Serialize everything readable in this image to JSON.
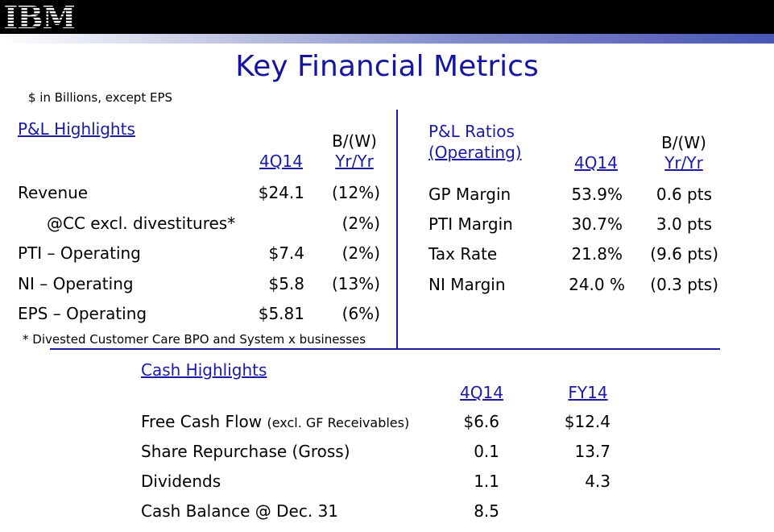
{
  "header": {
    "logo_text": "IBM"
  },
  "title": "Key Financial Metrics",
  "units_note": "$ in Billions, except EPS",
  "pl_highlights": {
    "heading": "P&L Highlights",
    "col1_header": "4Q14",
    "col2_header_line1": "B/(W)",
    "col2_header_line2": "Yr/Yr",
    "rows": [
      {
        "label": "Revenue",
        "value": "$24.1",
        "change": "(12%)"
      },
      {
        "label": "@CC excl. divestitures*",
        "value": "",
        "change": "(2%)"
      },
      {
        "label": "PTI – Operating",
        "value": "$7.4",
        "change": "(2%)"
      },
      {
        "label": "NI – Operating",
        "value": "$5.8",
        "change": "(13%)"
      },
      {
        "label": "EPS – Operating",
        "value": "$5.81",
        "change": "(6%)"
      }
    ],
    "footnote": "* Divested Customer Care BPO and System x businesses"
  },
  "pl_ratios": {
    "heading_line1": "P&L Ratios",
    "heading_line2": "(Operating)",
    "col1_header": "4Q14",
    "col2_header_line1": "B/(W)",
    "col2_header_line2": "Yr/Yr",
    "rows": [
      {
        "label": "GP Margin",
        "value": "53.9%",
        "change": "0.6 pts"
      },
      {
        "label": "PTI Margin",
        "value": "30.7%",
        "change": "3.0 pts"
      },
      {
        "label": "Tax Rate",
        "value": "21.8%",
        "change": "(9.6 pts)"
      },
      {
        "label": "NI Margin",
        "value": "24.0 %",
        "change": "(0.3 pts)"
      }
    ]
  },
  "cash_highlights": {
    "heading": "Cash Highlights",
    "col1_header": "4Q14",
    "col2_header": "FY14",
    "rows": [
      {
        "label": "Free Cash Flow",
        "sublabel": "(excl. GF Receivables)",
        "q": "$6.6",
        "fy": "$12.4"
      },
      {
        "label": "Share Repurchase (Gross)",
        "sublabel": "",
        "q": "0.1",
        "fy": "13.7"
      },
      {
        "label": "Dividends",
        "sublabel": "",
        "q": "1.1",
        "fy": "4.3"
      },
      {
        "label": "Cash Balance @ Dec. 31",
        "sublabel": "",
        "q": "8.5",
        "fy": ""
      }
    ]
  },
  "colors": {
    "accent": "#1a1aa6",
    "title": "#1515a0",
    "header_bar": "#000000"
  }
}
